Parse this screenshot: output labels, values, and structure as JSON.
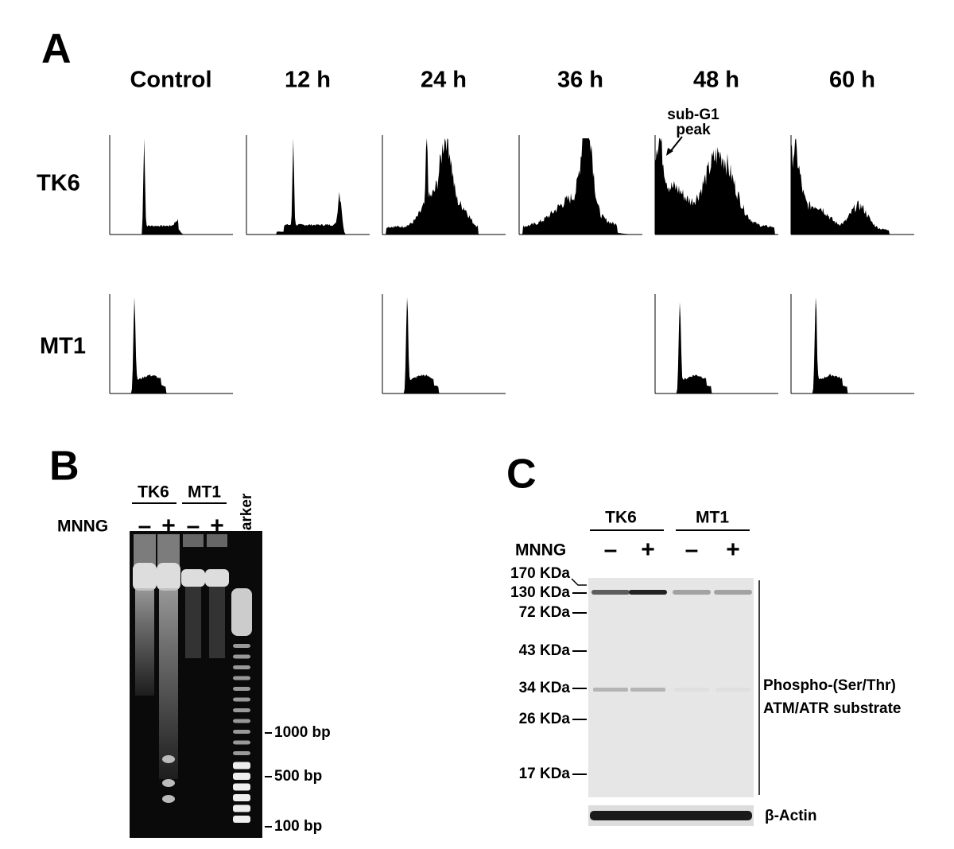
{
  "panel_a": {
    "label": "A",
    "timepoints": [
      "Control",
      "12 h",
      "24 h",
      "36 h",
      "48 h",
      "60 h"
    ],
    "rows": [
      "TK6",
      "MT1"
    ],
    "annotation": [
      "sub-G1",
      "peak"
    ]
  },
  "panel_b": {
    "label": "B",
    "groups": [
      "TK6",
      "MT1"
    ],
    "treatment": "MNNG",
    "signs": [
      "–",
      "+",
      "–",
      "+"
    ],
    "marker": "Marker",
    "sizes": [
      "1000 bp",
      "500 bp",
      "100 bp"
    ]
  },
  "panel_c": {
    "label": "C",
    "groups": [
      "TK6",
      "MT1"
    ],
    "treatment": "MNNG",
    "signs": [
      "–",
      "+",
      "–",
      "+"
    ],
    "weights": [
      "170 KDa",
      "130 KDa",
      "72 KDa",
      "43 KDa",
      "34 KDa",
      "26 KDa",
      "17 KDa"
    ],
    "antibody": [
      "Phospho-(Ser/Thr)",
      "ATM/ATR substrate"
    ],
    "loading": "β-Actin"
  }
}
